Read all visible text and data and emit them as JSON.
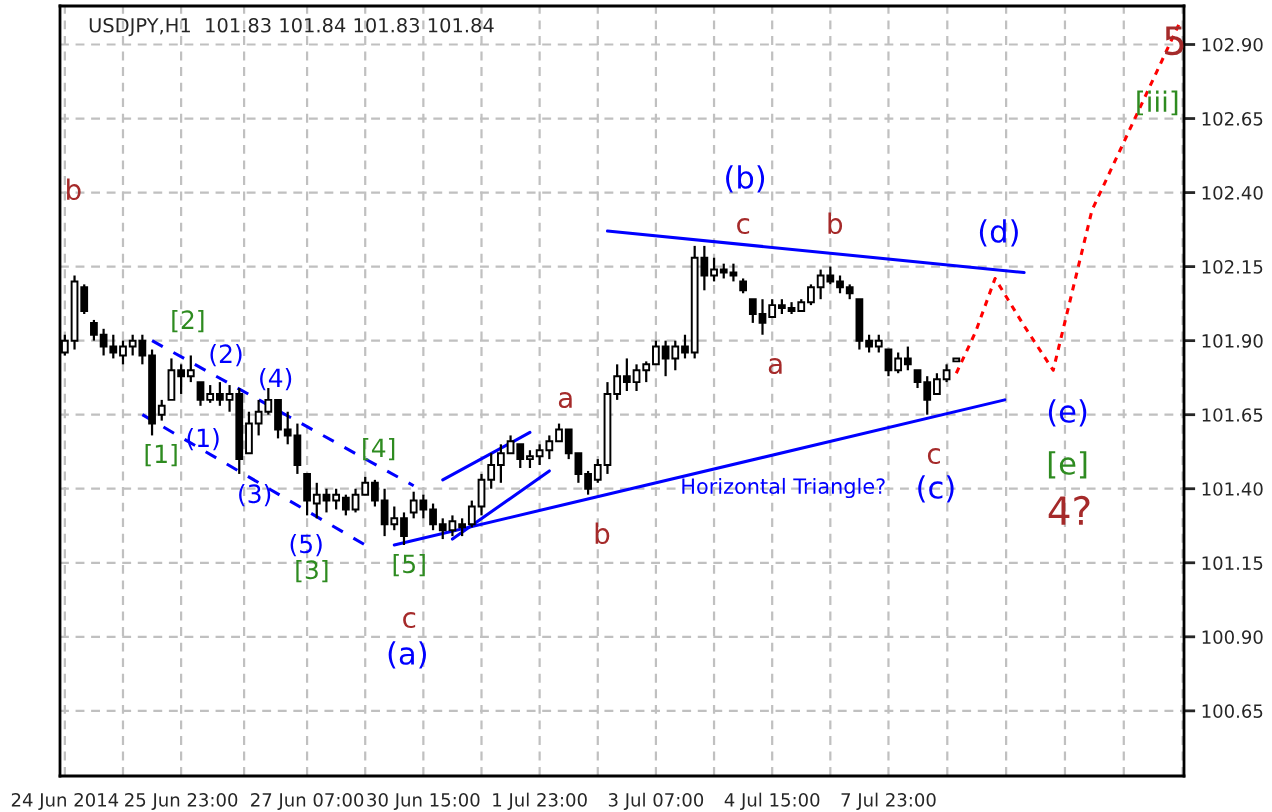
{
  "chart_data": {
    "type": "candlestick",
    "title": "USDJPY,H1  101.83 101.84 101.83 101.84",
    "color": "#000000",
    "categories": [
      "24 Jun 2014",
      null,
      null,
      null,
      null,
      null,
      null,
      null,
      null,
      null,
      null,
      null,
      "25 Jun 23:00",
      null,
      null,
      null,
      null,
      null,
      null,
      null,
      null,
      null,
      null,
      null,
      null,
      "27 Jun 07:00",
      null,
      null,
      null,
      null,
      null,
      null,
      null,
      null,
      null,
      null,
      null,
      "30 Jun 15:00",
      null,
      null,
      null,
      null,
      null,
      null,
      null,
      null,
      null,
      null,
      null,
      "1 Jul 23:00",
      null,
      null,
      null,
      null,
      null,
      null,
      null,
      null,
      null,
      null,
      null,
      "3 Jul 07:00",
      null,
      null,
      null,
      null,
      null,
      null,
      null,
      null,
      null,
      null,
      null,
      "4 Jul 15:00",
      null,
      null,
      null,
      null,
      null,
      null,
      null,
      null,
      null,
      null,
      null,
      "7 Jul 23:00",
      null,
      null,
      null,
      null,
      null,
      null,
      null,
      null,
      null,
      null,
      null,
      null,
      null,
      null,
      null,
      null,
      null,
      null,
      null,
      null,
      null,
      null,
      null,
      null,
      null,
      null,
      null,
      null,
      null,
      null
    ],
    "ohlc": [
      [
        101.86,
        101.92,
        101.85,
        101.9
      ],
      [
        101.9,
        102.12,
        101.87,
        102.1
      ],
      [
        102.08,
        102.09,
        101.99,
        102.0
      ],
      [
        101.96,
        101.97,
        101.9,
        101.92
      ],
      [
        101.92,
        101.94,
        101.85,
        101.88
      ],
      [
        101.88,
        101.92,
        101.84,
        101.86
      ],
      [
        101.85,
        101.9,
        101.82,
        101.88
      ],
      [
        101.88,
        101.92,
        101.85,
        101.9
      ],
      [
        101.9,
        101.92,
        101.82,
        101.85
      ],
      [
        101.85,
        101.87,
        101.58,
        101.62
      ],
      [
        101.65,
        101.7,
        101.63,
        101.68
      ],
      [
        101.7,
        101.84,
        101.7,
        101.8
      ],
      [
        101.8,
        101.82,
        101.72,
        101.78
      ],
      [
        101.78,
        101.85,
        101.76,
        101.8
      ],
      [
        101.76,
        101.76,
        101.68,
        101.7
      ],
      [
        101.7,
        101.75,
        101.69,
        101.72
      ],
      [
        101.72,
        101.76,
        101.68,
        101.7
      ],
      [
        101.7,
        101.75,
        101.66,
        101.72
      ],
      [
        101.72,
        101.74,
        101.45,
        101.5
      ],
      [
        101.52,
        101.66,
        101.52,
        101.62
      ],
      [
        101.62,
        101.7,
        101.58,
        101.66
      ],
      [
        101.66,
        101.74,
        101.65,
        101.7
      ],
      [
        101.7,
        101.7,
        101.57,
        101.6
      ],
      [
        101.6,
        101.66,
        101.55,
        101.58
      ],
      [
        101.58,
        101.62,
        101.45,
        101.48
      ],
      [
        101.45,
        101.45,
        101.31,
        101.36
      ],
      [
        101.35,
        101.42,
        101.3,
        101.38
      ],
      [
        101.38,
        101.4,
        101.32,
        101.36
      ],
      [
        101.36,
        101.4,
        101.33,
        101.38
      ],
      [
        101.37,
        101.38,
        101.31,
        101.33
      ],
      [
        101.33,
        101.4,
        101.32,
        101.38
      ],
      [
        101.38,
        101.44,
        101.38,
        101.42
      ],
      [
        101.42,
        101.43,
        101.34,
        101.36
      ],
      [
        101.36,
        101.4,
        101.24,
        101.28
      ],
      [
        101.28,
        101.34,
        101.26,
        101.3
      ],
      [
        101.3,
        101.32,
        101.21,
        101.24
      ],
      [
        101.32,
        101.39,
        101.3,
        101.36
      ],
      [
        101.36,
        101.38,
        101.3,
        101.33
      ],
      [
        101.33,
        101.35,
        101.26,
        101.28
      ],
      [
        101.28,
        101.3,
        101.23,
        101.26
      ],
      [
        101.26,
        101.31,
        101.24,
        101.29
      ],
      [
        101.28,
        101.3,
        101.24,
        101.27
      ],
      [
        101.28,
        101.36,
        101.27,
        101.34
      ],
      [
        101.34,
        101.45,
        101.31,
        101.43
      ],
      [
        101.43,
        101.52,
        101.4,
        101.48
      ],
      [
        101.48,
        101.55,
        101.42,
        101.52
      ],
      [
        101.52,
        101.58,
        101.52,
        101.56
      ],
      [
        101.55,
        101.55,
        101.47,
        101.5
      ],
      [
        101.5,
        101.53,
        101.47,
        101.51
      ],
      [
        101.51,
        101.55,
        101.48,
        101.53
      ],
      [
        101.53,
        101.58,
        101.5,
        101.56
      ],
      [
        101.56,
        101.62,
        101.56,
        101.6
      ],
      [
        101.6,
        101.6,
        101.5,
        101.52
      ],
      [
        101.52,
        101.52,
        101.42,
        101.45
      ],
      [
        101.45,
        101.46,
        101.38,
        101.4
      ],
      [
        101.43,
        101.5,
        101.42,
        101.48
      ],
      [
        101.48,
        101.76,
        101.45,
        101.72
      ],
      [
        101.72,
        101.82,
        101.7,
        101.78
      ],
      [
        101.78,
        101.84,
        101.73,
        101.76
      ],
      [
        101.76,
        101.82,
        101.73,
        101.8
      ],
      [
        101.8,
        101.83,
        101.76,
        101.82
      ],
      [
        101.82,
        101.9,
        101.82,
        101.88
      ],
      [
        101.88,
        101.9,
        101.78,
        101.84
      ],
      [
        101.84,
        101.9,
        101.8,
        101.88
      ],
      [
        101.88,
        101.92,
        101.84,
        101.86
      ],
      [
        101.86,
        102.22,
        101.84,
        102.18
      ],
      [
        102.18,
        102.22,
        102.07,
        102.12
      ],
      [
        102.12,
        102.18,
        102.1,
        102.14
      ],
      [
        102.14,
        102.16,
        102.11,
        102.13
      ],
      [
        102.13,
        102.16,
        102.1,
        102.12
      ],
      [
        102.1,
        102.11,
        102.06,
        102.07
      ],
      [
        102.04,
        102.04,
        101.96,
        101.99
      ],
      [
        101.99,
        102.04,
        101.92,
        101.96
      ],
      [
        101.98,
        102.04,
        101.98,
        102.02
      ],
      [
        102.02,
        102.04,
        101.99,
        102.01
      ],
      [
        102.01,
        102.03,
        101.99,
        102.0
      ],
      [
        102.0,
        102.04,
        102.0,
        102.03
      ],
      [
        102.03,
        102.09,
        102.02,
        102.08
      ],
      [
        102.08,
        102.14,
        102.04,
        102.12
      ],
      [
        102.12,
        102.15,
        102.09,
        102.1
      ],
      [
        102.1,
        102.12,
        102.06,
        102.08
      ],
      [
        102.08,
        102.09,
        102.04,
        102.06
      ],
      [
        102.04,
        102.04,
        101.87,
        101.9
      ],
      [
        101.9,
        101.92,
        101.86,
        101.88
      ],
      [
        101.88,
        101.92,
        101.86,
        101.9
      ],
      [
        101.87,
        101.87,
        101.78,
        101.8
      ],
      [
        101.8,
        101.86,
        101.79,
        101.84
      ],
      [
        101.84,
        101.88,
        101.8,
        101.82
      ],
      [
        101.8,
        101.8,
        101.74,
        101.76
      ],
      [
        101.76,
        101.78,
        101.65,
        101.7
      ],
      [
        101.72,
        101.79,
        101.72,
        101.77
      ],
      [
        101.77,
        101.82,
        101.76,
        101.8
      ],
      [
        101.83,
        101.84,
        101.83,
        101.84
      ],
      null,
      null,
      null,
      null,
      null,
      null,
      null,
      null,
      null,
      null,
      null,
      null,
      null,
      null,
      null,
      null,
      null,
      null,
      null,
      null,
      null,
      null,
      null
    ],
    "series": [
      {
        "type": "line",
        "color": "#0000ff",
        "line_style": "solid",
        "values": [
          null,
          null,
          null,
          null,
          null,
          null,
          null,
          null,
          null,
          null,
          null,
          null,
          null,
          null,
          null,
          null,
          null,
          null,
          null,
          null,
          null,
          null,
          null,
          null,
          null,
          null,
          null,
          null,
          null,
          null,
          null,
          null,
          null,
          null,
          null,
          null,
          null,
          null,
          null,
          null,
          null,
          null,
          null,
          null,
          null,
          null,
          null,
          null,
          null,
          null,
          null,
          null,
          null,
          null,
          null,
          null,
          102.27,
          null,
          null,
          null,
          null,
          null,
          null,
          null,
          null,
          null,
          null,
          null,
          null,
          null,
          null,
          null,
          null,
          null,
          null,
          null,
          null,
          null,
          null,
          null,
          null,
          null,
          null,
          null,
          null,
          null,
          null,
          null,
          null,
          null,
          null,
          null,
          null,
          null,
          null,
          null,
          null,
          null,
          null,
          102.13,
          null,
          null,
          null,
          null,
          null,
          null,
          null,
          null,
          null,
          null,
          null,
          null,
          null,
          null,
          null,
          null
        ]
      },
      {
        "type": "line",
        "color": "#0000ff",
        "line_style": "solid",
        "values": [
          null,
          null,
          null,
          null,
          null,
          null,
          null,
          null,
          null,
          null,
          null,
          null,
          null,
          null,
          null,
          null,
          null,
          null,
          null,
          null,
          null,
          null,
          null,
          null,
          null,
          null,
          null,
          null,
          null,
          null,
          null,
          null,
          null,
          null,
          101.21,
          null,
          null,
          null,
          null,
          null,
          null,
          null,
          null,
          null,
          null,
          null,
          null,
          null,
          null,
          null,
          null,
          null,
          null,
          null,
          null,
          null,
          null,
          null,
          null,
          null,
          null,
          null,
          null,
          null,
          null,
          null,
          null,
          null,
          null,
          null,
          null,
          null,
          null,
          null,
          null,
          null,
          null,
          null,
          null,
          null,
          null,
          null,
          null,
          null,
          null,
          null,
          null,
          null,
          null,
          null,
          null,
          null,
          null,
          null,
          null,
          null,
          null,
          101.7,
          null,
          null,
          null,
          null,
          null,
          null,
          null,
          null,
          null,
          null,
          null,
          null,
          null,
          null,
          null,
          null,
          null,
          null
        ]
      },
      {
        "type": "line",
        "color": "#0000ff",
        "line_style": "solid",
        "values": [
          null,
          null,
          null,
          null,
          null,
          null,
          null,
          null,
          null,
          null,
          null,
          null,
          null,
          null,
          null,
          null,
          null,
          null,
          null,
          null,
          null,
          null,
          null,
          null,
          null,
          null,
          null,
          null,
          null,
          null,
          null,
          null,
          null,
          null,
          null,
          null,
          null,
          null,
          null,
          101.43,
          null,
          null,
          null,
          null,
          null,
          null,
          null,
          null,
          101.59,
          null,
          null,
          null,
          null,
          null,
          null,
          null,
          null,
          null,
          null,
          null,
          null,
          null,
          null,
          null,
          null,
          null,
          null,
          null,
          null,
          null,
          null,
          null,
          null,
          null,
          null,
          null,
          null,
          null,
          null,
          null,
          null,
          null,
          null,
          null,
          null,
          null,
          null,
          null,
          null,
          null,
          null,
          null,
          null,
          null,
          null,
          null,
          null,
          null,
          null,
          null,
          null,
          null,
          null,
          null,
          null,
          null,
          null,
          null,
          null,
          null,
          null,
          null,
          null,
          null,
          null,
          null
        ]
      },
      {
        "type": "line",
        "color": "#0000ff",
        "line_style": "solid",
        "values": [
          null,
          null,
          null,
          null,
          null,
          null,
          null,
          null,
          null,
          null,
          null,
          null,
          null,
          null,
          null,
          null,
          null,
          null,
          null,
          null,
          null,
          null,
          null,
          null,
          null,
          null,
          null,
          null,
          null,
          null,
          null,
          null,
          null,
          null,
          null,
          null,
          null,
          null,
          null,
          null,
          101.23,
          null,
          null,
          null,
          null,
          null,
          null,
          null,
          null,
          null,
          101.46,
          null,
          null,
          null,
          null,
          null,
          null,
          null,
          null,
          null,
          null,
          null,
          null,
          null,
          null,
          null,
          null,
          null,
          null,
          null,
          null,
          null,
          null,
          null,
          null,
          null,
          null,
          null,
          null,
          null,
          null,
          null,
          null,
          null,
          null,
          null,
          null,
          null,
          null,
          null,
          null,
          null,
          null,
          null,
          null,
          null,
          null,
          null,
          null,
          null,
          null,
          null,
          null,
          null,
          null,
          null,
          null,
          null,
          null,
          null,
          null,
          null,
          null,
          null,
          null,
          null
        ]
      },
      {
        "type": "line",
        "color": "#0000ff",
        "line_style": "dashed",
        "values": [
          null,
          null,
          null,
          null,
          null,
          null,
          null,
          null,
          null,
          101.9,
          null,
          null,
          null,
          null,
          null,
          null,
          null,
          null,
          null,
          null,
          null,
          null,
          null,
          null,
          null,
          null,
          null,
          null,
          null,
          null,
          null,
          null,
          null,
          null,
          null,
          null,
          101.41,
          null,
          null,
          null,
          null,
          null,
          null,
          null,
          null,
          null,
          null,
          null,
          null,
          null,
          null,
          null,
          null,
          null,
          null,
          null,
          null,
          null,
          null,
          null,
          null,
          null,
          null,
          null,
          null,
          null,
          null,
          null,
          null,
          null,
          null,
          null,
          null,
          null,
          null,
          null,
          null,
          null,
          null,
          null,
          null,
          null,
          null,
          null,
          null,
          null,
          null,
          null,
          null,
          null,
          null,
          null,
          null,
          null,
          null,
          null,
          null,
          null,
          null,
          null,
          null,
          null,
          null,
          null,
          null,
          null,
          null,
          null,
          null,
          null,
          null,
          null,
          null,
          null,
          null,
          null
        ]
      },
      {
        "type": "line",
        "color": "#0000ff",
        "line_style": "dashed",
        "values": [
          null,
          null,
          null,
          null,
          null,
          null,
          null,
          null,
          101.65,
          null,
          null,
          null,
          null,
          null,
          null,
          null,
          null,
          null,
          null,
          null,
          null,
          null,
          null,
          null,
          null,
          null,
          null,
          null,
          null,
          null,
          null,
          101.21,
          null,
          null,
          null,
          null,
          null,
          null,
          null,
          null,
          null,
          null,
          null,
          null,
          null,
          null,
          null,
          null,
          null,
          null,
          null,
          null,
          null,
          null,
          null,
          null,
          null,
          null,
          null,
          null,
          null,
          null,
          null,
          null,
          null,
          null,
          null,
          null,
          null,
          null,
          null,
          null,
          null,
          null,
          null,
          null,
          null,
          null,
          null,
          null,
          null,
          null,
          null,
          null,
          null,
          null,
          null,
          null,
          null,
          null,
          null,
          null,
          null,
          null,
          null,
          null,
          null,
          null,
          null,
          null,
          null,
          null,
          null,
          null,
          null,
          null,
          null,
          null,
          null,
          null,
          null,
          null,
          null,
          null,
          null,
          null
        ]
      },
      {
        "type": "line",
        "color": "#ff0000",
        "line_style": "dotted",
        "values": [
          null,
          null,
          null,
          null,
          null,
          null,
          null,
          null,
          null,
          null,
          null,
          null,
          null,
          null,
          null,
          null,
          null,
          null,
          null,
          null,
          null,
          null,
          null,
          null,
          null,
          null,
          null,
          null,
          null,
          null,
          null,
          null,
          null,
          null,
          null,
          null,
          null,
          null,
          null,
          null,
          null,
          null,
          null,
          null,
          null,
          null,
          null,
          null,
          null,
          null,
          null,
          null,
          null,
          null,
          null,
          null,
          null,
          null,
          null,
          null,
          null,
          null,
          null,
          null,
          null,
          null,
          null,
          null,
          null,
          null,
          null,
          null,
          null,
          null,
          null,
          null,
          null,
          null,
          null,
          null,
          null,
          null,
          null,
          null,
          null,
          null,
          null,
          null,
          null,
          null,
          null,
          null,
          101.79,
          null,
          101.93,
          null,
          102.11,
          null,
          null,
          101.95,
          null,
          null,
          101.8,
          null,
          null,
          null,
          102.34,
          null,
          null,
          null,
          null,
          null,
          null,
          null,
          null,
          102.97
        ]
      }
    ],
    "ylim": [
      100.43,
      103.03
    ],
    "yticks": [
      {
        "value": 100.65,
        "label": "100.65"
      },
      {
        "value": 100.9,
        "label": "100.90"
      },
      {
        "value": 101.15,
        "label": "101.15"
      },
      {
        "value": 101.4,
        "label": "101.40"
      },
      {
        "value": 101.65,
        "label": "101.65"
      },
      {
        "value": 101.9,
        "label": "101.90"
      },
      {
        "value": 102.15,
        "label": "102.15"
      },
      {
        "value": 102.4,
        "label": "102.40"
      },
      {
        "value": 102.65,
        "label": "102.65"
      },
      {
        "value": 102.9,
        "label": "102.90"
      }
    ],
    "grid": true,
    "annotations": [
      "b",
      "[2]",
      "[1]",
      "(2)",
      "(1)",
      "(4)",
      "(3)",
      "(5)",
      "[3]",
      "[4]",
      "[5]",
      "c",
      "(a)",
      "a",
      "b",
      "(b)",
      "c",
      "a",
      "b",
      "(d)",
      "c",
      "(c)",
      "(e)",
      "[e]",
      "4?",
      "5",
      "[iii]",
      "Horizontal Triangle?"
    ]
  }
}
